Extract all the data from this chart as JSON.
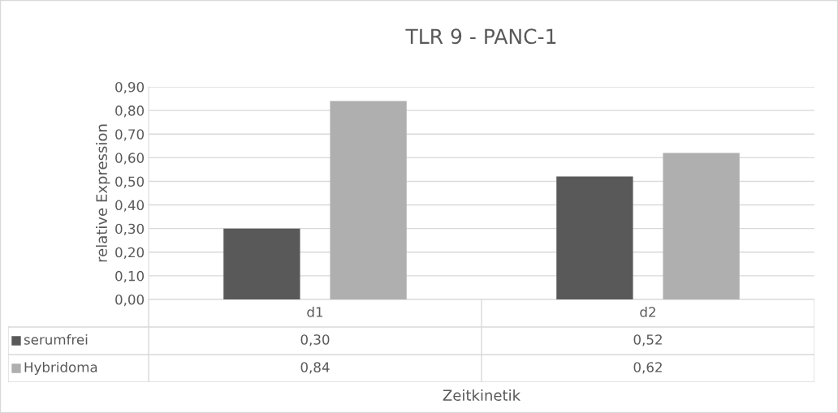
{
  "chart_data": {
    "type": "bar",
    "title": "TLR 9 - PANC-1",
    "xlabel": "Zeitkinetik",
    "ylabel": "relative Expression",
    "categories": [
      "d1",
      "d2"
    ],
    "series": [
      {
        "name": "serumfrei",
        "color": "#595959",
        "values": [
          0.3,
          0.52
        ],
        "value_labels": [
          "0,30",
          "0,52"
        ]
      },
      {
        "name": "Hybridoma",
        "color": "#afafaf",
        "values": [
          0.84,
          0.62
        ],
        "value_labels": [
          "0,84",
          "0,62"
        ]
      }
    ],
    "ylim": [
      0,
      0.9
    ],
    "yticks": [
      {
        "value": 0,
        "label": "0,00"
      },
      {
        "value": 0.1,
        "label": "0,10"
      },
      {
        "value": 0.2,
        "label": "0,20"
      },
      {
        "value": 0.3,
        "label": "0,30"
      },
      {
        "value": 0.4,
        "label": "0,40"
      },
      {
        "value": 0.5,
        "label": "0,50"
      },
      {
        "value": 0.6,
        "label": "0,60"
      },
      {
        "value": 0.7,
        "label": "0,70"
      },
      {
        "value": 0.8,
        "label": "0,80"
      },
      {
        "value": 0.9,
        "label": "0,90"
      }
    ],
    "grid": "y",
    "legend": "bottom left"
  }
}
